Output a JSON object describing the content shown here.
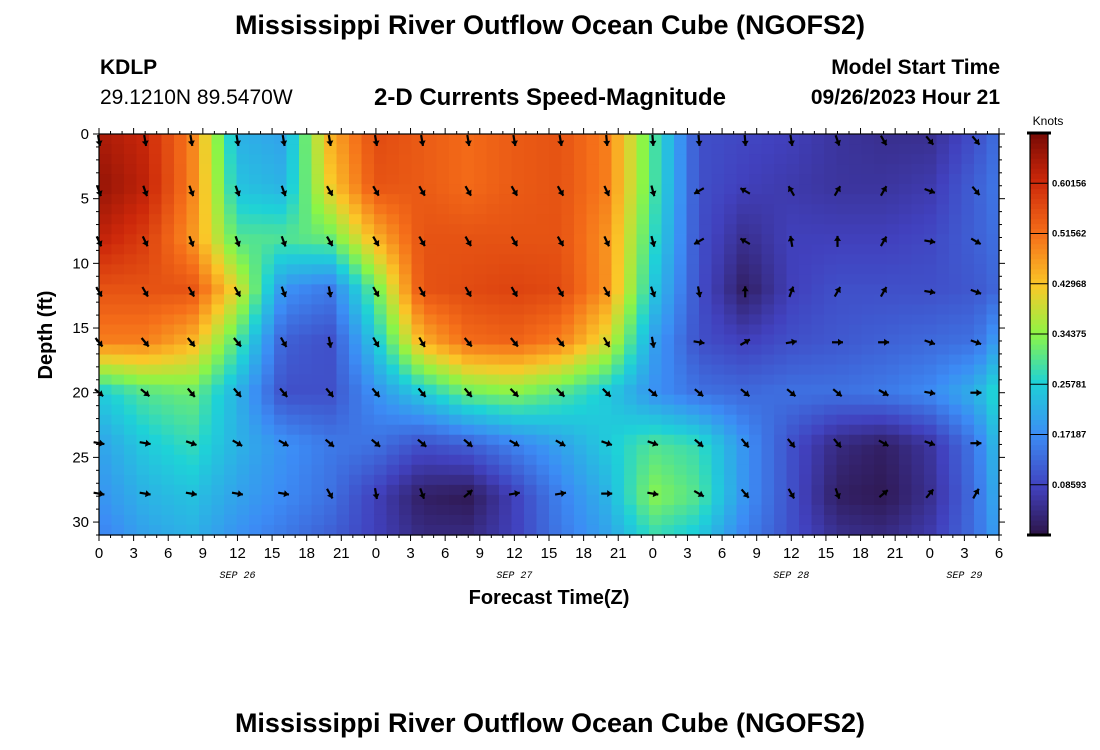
{
  "header": {
    "title": "Mississippi River Outflow Ocean Cube (NGOFS2)",
    "station": "KDLP",
    "coords": "29.1210N  89.5470W",
    "subtitle": "2-D Currents Speed-Magnitude",
    "model_start_label": "Model Start Time",
    "model_start_value": "09/26/2023 Hour 21"
  },
  "footer": {
    "title": "Mississippi River Outflow Ocean Cube (NGOFS2)"
  },
  "chart_data": {
    "type": "heatmap",
    "title": "2-D Currents Speed-Magnitude",
    "xlabel": "Forecast Time(Z)",
    "ylabel": "Depth (ft)",
    "colorbar_label": "Knots",
    "x_ticks": [
      "0",
      "3",
      "6",
      "9",
      "12",
      "15",
      "18",
      "21",
      "0",
      "3",
      "6",
      "9",
      "12",
      "15",
      "18",
      "21",
      "0",
      "3",
      "6",
      "9",
      "12",
      "15",
      "18",
      "21",
      "0",
      "3",
      "6"
    ],
    "x_range_hours": [
      0,
      78
    ],
    "date_labels": [
      {
        "label": "SEP 26",
        "hour": 12
      },
      {
        "label": "SEP 27",
        "hour": 36
      },
      {
        "label": "SEP 28",
        "hour": 60
      },
      {
        "label": "SEP 29",
        "hour": 75
      }
    ],
    "y_ticks": [
      0,
      5,
      10,
      15,
      20,
      25,
      30
    ],
    "ylim": [
      31,
      0
    ],
    "colorbar_ticks": [
      "0.08593",
      "0.17187",
      "0.25781",
      "0.34375",
      "0.42968",
      "0.51562",
      "0.60156"
    ],
    "colorbar_range": [
      0,
      0.6875
    ],
    "speed_hours": [
      0,
      4,
      8,
      12,
      16,
      20,
      24,
      28,
      32,
      36,
      40,
      44,
      48,
      52,
      56,
      60,
      64,
      68,
      72,
      76,
      78
    ],
    "speed_depths": [
      0,
      4,
      8,
      12,
      16,
      20,
      24,
      28,
      31
    ],
    "speed": [
      [
        0.64,
        0.61,
        0.5,
        0.22,
        0.2,
        0.45,
        0.56,
        0.54,
        0.52,
        0.54,
        0.55,
        0.5,
        0.3,
        0.1,
        0.09,
        0.08,
        0.06,
        0.05,
        0.05,
        0.1,
        0.14
      ],
      [
        0.66,
        0.62,
        0.5,
        0.24,
        0.22,
        0.42,
        0.55,
        0.54,
        0.52,
        0.54,
        0.55,
        0.5,
        0.3,
        0.1,
        0.08,
        0.07,
        0.06,
        0.06,
        0.07,
        0.12,
        0.15
      ],
      [
        0.62,
        0.58,
        0.48,
        0.3,
        0.3,
        0.32,
        0.45,
        0.55,
        0.55,
        0.55,
        0.55,
        0.48,
        0.28,
        0.1,
        0.05,
        0.08,
        0.08,
        0.08,
        0.09,
        0.12,
        0.14
      ],
      [
        0.55,
        0.55,
        0.55,
        0.4,
        0.18,
        0.15,
        0.32,
        0.55,
        0.56,
        0.57,
        0.56,
        0.48,
        0.25,
        0.1,
        0.02,
        0.08,
        0.1,
        0.1,
        0.1,
        0.11,
        0.13
      ],
      [
        0.5,
        0.5,
        0.45,
        0.3,
        0.12,
        0.1,
        0.25,
        0.45,
        0.52,
        0.53,
        0.5,
        0.4,
        0.2,
        0.1,
        0.08,
        0.1,
        0.11,
        0.12,
        0.13,
        0.14,
        0.2
      ],
      [
        0.25,
        0.3,
        0.32,
        0.22,
        0.1,
        0.1,
        0.18,
        0.25,
        0.32,
        0.34,
        0.3,
        0.25,
        0.18,
        0.14,
        0.13,
        0.14,
        0.14,
        0.15,
        0.17,
        0.22,
        0.28
      ],
      [
        0.2,
        0.25,
        0.28,
        0.22,
        0.18,
        0.15,
        0.14,
        0.1,
        0.12,
        0.16,
        0.2,
        0.25,
        0.3,
        0.28,
        0.18,
        0.1,
        0.04,
        0.02,
        0.06,
        0.15,
        0.24
      ],
      [
        0.18,
        0.22,
        0.24,
        0.2,
        0.17,
        0.14,
        0.08,
        0.02,
        0.01,
        0.08,
        0.16,
        0.22,
        0.34,
        0.3,
        0.18,
        0.1,
        0.02,
        0.01,
        0.05,
        0.14,
        0.22
      ],
      [
        0.16,
        0.2,
        0.22,
        0.18,
        0.15,
        0.12,
        0.08,
        0.04,
        0.04,
        0.08,
        0.15,
        0.2,
        0.28,
        0.25,
        0.16,
        0.1,
        0.05,
        0.04,
        0.07,
        0.14,
        0.2
      ]
    ],
    "vector_hours": [
      0,
      4,
      8,
      12,
      16,
      20,
      24,
      28,
      32,
      36,
      40,
      44,
      48,
      52,
      56,
      60,
      64,
      68,
      72,
      76
    ],
    "vector_depths": [
      0.5,
      4.4,
      8.3,
      12.2,
      16.1,
      20,
      23.9,
      27.8
    ],
    "vector_dirs_deg": [
      [
        170,
        170,
        170,
        170,
        170,
        170,
        170,
        170,
        170,
        170,
        170,
        175,
        175,
        175,
        175,
        170,
        160,
        150,
        140,
        140
      ],
      [
        160,
        160,
        160,
        160,
        160,
        150,
        150,
        150,
        150,
        150,
        150,
        155,
        165,
        240,
        300,
        330,
        30,
        30,
        110,
        140
      ],
      [
        155,
        155,
        160,
        160,
        160,
        150,
        150,
        150,
        150,
        150,
        150,
        155,
        165,
        240,
        300,
        350,
        0,
        30,
        100,
        120
      ],
      [
        150,
        150,
        150,
        150,
        160,
        170,
        150,
        150,
        150,
        150,
        150,
        150,
        160,
        170,
        0,
        20,
        30,
        30,
        100,
        110
      ],
      [
        140,
        140,
        140,
        140,
        150,
        170,
        150,
        150,
        140,
        140,
        140,
        150,
        170,
        100,
        60,
        80,
        90,
        90,
        110,
        110
      ],
      [
        130,
        130,
        140,
        140,
        140,
        140,
        140,
        140,
        140,
        135,
        135,
        135,
        130,
        130,
        130,
        130,
        130,
        120,
        100,
        90
      ],
      [
        100,
        100,
        110,
        120,
        120,
        130,
        130,
        130,
        130,
        120,
        120,
        110,
        110,
        130,
        140,
        140,
        140,
        120,
        110,
        90
      ],
      [
        100,
        100,
        100,
        100,
        100,
        150,
        170,
        160,
        50,
        80,
        80,
        90,
        100,
        120,
        140,
        150,
        160,
        50,
        40,
        30
      ]
    ]
  }
}
